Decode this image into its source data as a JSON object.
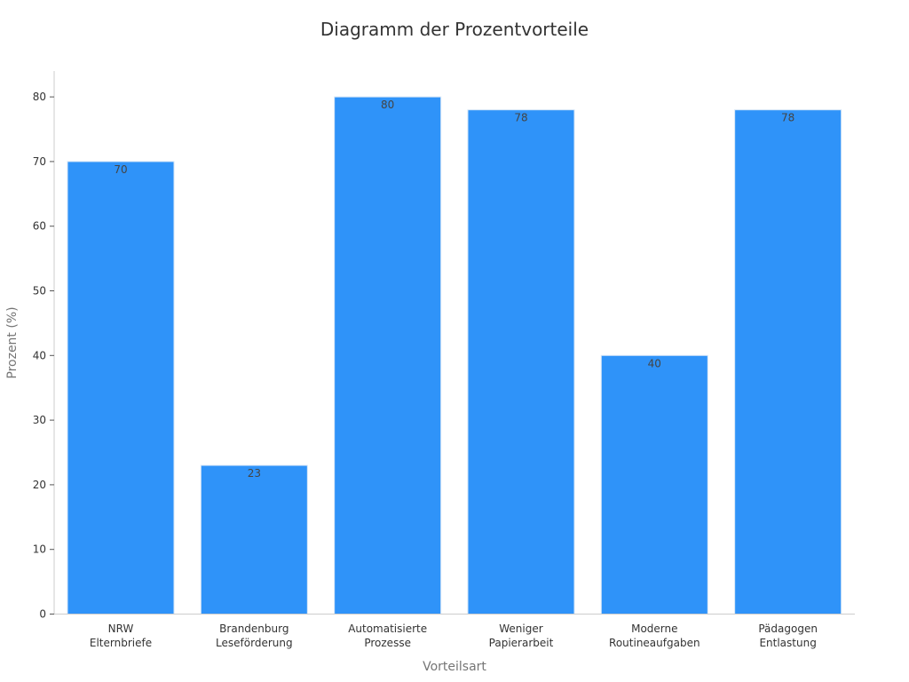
{
  "chart_data": {
    "type": "bar",
    "title": "Diagramm der Prozentvorteile",
    "xlabel": "Vorteilsart",
    "ylabel": "Prozent (%)",
    "categories": [
      [
        "NRW",
        "Elternbriefe"
      ],
      [
        "Brandenburg",
        "Leseförderung"
      ],
      [
        "Automatisierte",
        "Prozesse"
      ],
      [
        "Weniger",
        "Papierarbeit"
      ],
      [
        "Moderne",
        "Routineaufgaben"
      ],
      [
        "Pädagogen",
        "Entlastung"
      ]
    ],
    "values": [
      70,
      23,
      80,
      78,
      40,
      78
    ],
    "ylim": [
      0,
      84
    ],
    "yticks": [
      0,
      10,
      20,
      30,
      40,
      50,
      60,
      70,
      80
    ],
    "grid": false,
    "legend": "none",
    "colors": {
      "bar": "#2f93f9",
      "bar_edge": "#d6e6f7"
    }
  }
}
